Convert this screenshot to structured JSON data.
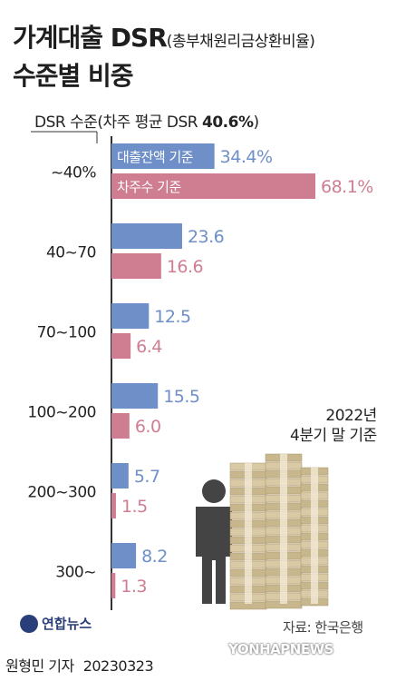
{
  "title": {
    "line1": "가계대출 DSR",
    "line1_sub": "(총부채원리금상환비율)",
    "line2": "수준별 비중"
  },
  "dsr_label": {
    "prefix": "DSR 수준",
    "text": "(차주 평균 DSR ",
    "value": "40.6%",
    "suffix": ")"
  },
  "basis": {
    "line1": "2022년",
    "line2": "4분기 말 기준"
  },
  "source": "자료: 한국은행",
  "credit": {
    "reporter": "원형민 기자",
    "date": "20230323"
  },
  "logo": "연합뉴스",
  "watermark": "YONHAPNEWS",
  "chart_data": {
    "type": "bar",
    "orientation": "horizontal",
    "categories": [
      "~40%",
      "40~70",
      "70~100",
      "100~200",
      "200~300",
      "300~"
    ],
    "series": [
      {
        "name": "대출잔액 기준",
        "values": [
          34.4,
          23.6,
          12.5,
          15.5,
          5.7,
          8.2
        ],
        "color": "#6f8fc8",
        "value_labels": [
          "34.4%",
          "23.6",
          "12.5",
          "15.5",
          "5.7",
          "8.2"
        ]
      },
      {
        "name": "차주수 기준",
        "values": [
          68.1,
          16.6,
          6.4,
          6.0,
          1.5,
          1.3
        ],
        "color": "#cf7e92",
        "value_labels": [
          "68.1%",
          "16.6",
          "6.4",
          "6.0",
          "1.5",
          "1.3"
        ]
      }
    ],
    "xlim": [
      0,
      68.1
    ]
  }
}
